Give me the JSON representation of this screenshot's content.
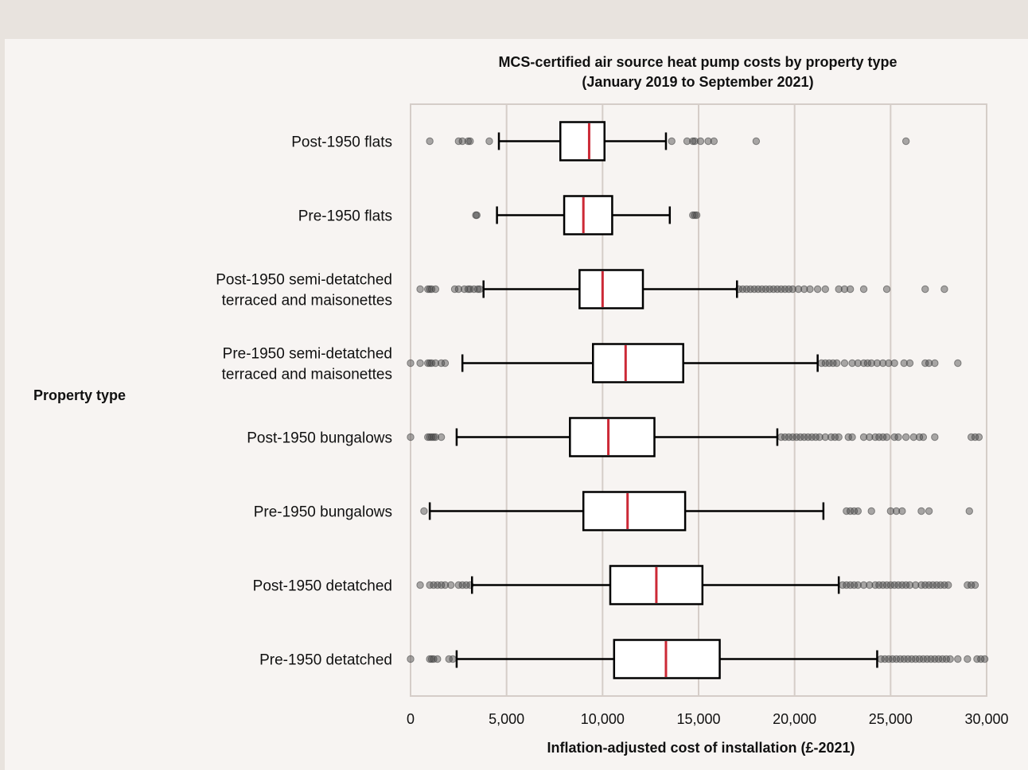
{
  "chart_data": {
    "type": "boxplot",
    "orientation": "horizontal",
    "title_line1": "MCS-certified air source heat pump costs by property type",
    "title_line2": "(January 2019 to September 2021)",
    "xlabel": "Inflation-adjusted cost of installation (£-2021)",
    "ylabel": "Property type",
    "xlim": [
      0,
      30000
    ],
    "xticks": [
      0,
      5000,
      10000,
      15000,
      20000,
      25000,
      30000
    ],
    "xtick_labels": [
      "0",
      "5,000",
      "10,000",
      "15,000",
      "20,000",
      "25,000",
      "30,000"
    ],
    "grid": "vertical",
    "colors": {
      "median": "#cc2936",
      "box": "#000000",
      "grid": "#d5cdc8",
      "outlier": "#444444"
    },
    "categories": [
      {
        "label_lines": [
          "Post-1950 flats"
        ],
        "whisker_low": 4600,
        "q1": 7800,
        "median": 9300,
        "q3": 10100,
        "whisker_high": 13300,
        "outliers": [
          1000,
          2500,
          2700,
          3000,
          3100,
          4100,
          13600,
          14400,
          14700,
          14800,
          15100,
          15500,
          15800,
          18000,
          25800
        ]
      },
      {
        "label_lines": [
          "Pre-1950 flats"
        ],
        "whisker_low": 4500,
        "q1": 8000,
        "median": 9000,
        "q3": 10500,
        "whisker_high": 13500,
        "outliers": [
          3400,
          3450,
          14700,
          14800,
          14900
        ]
      },
      {
        "label_lines": [
          "Post-1950 semi-detatched",
          "terraced and maisonettes"
        ],
        "whisker_low": 3800,
        "q1": 8800,
        "median": 10000,
        "q3": 12100,
        "whisker_high": 17000,
        "outliers": [
          500,
          900,
          1000,
          1100,
          1300,
          2300,
          2500,
          2800,
          3000,
          3100,
          3300,
          3500,
          3600,
          17100,
          17300,
          17500,
          17700,
          17900,
          18100,
          18300,
          18500,
          18700,
          18900,
          19100,
          19300,
          19500,
          19700,
          19900,
          20200,
          20500,
          20800,
          21200,
          21600,
          22300,
          22600,
          22900,
          23600,
          24800,
          26800,
          27800
        ]
      },
      {
        "label_lines": [
          "Pre-1950 semi-detatched",
          "terraced and maisonettes"
        ],
        "whisker_low": 2700,
        "q1": 9500,
        "median": 11200,
        "q3": 14200,
        "whisker_high": 21200,
        "outliers": [
          0,
          500,
          900,
          1000,
          1100,
          1300,
          1600,
          1800,
          21400,
          21600,
          21800,
          22000,
          22200,
          22600,
          23000,
          23300,
          23600,
          23800,
          24000,
          24300,
          24600,
          24900,
          25200,
          25700,
          26000,
          26800,
          27000,
          27300,
          28500
        ]
      },
      {
        "label_lines": [
          "Post-1950 bungalows"
        ],
        "whisker_low": 2400,
        "q1": 8300,
        "median": 10300,
        "q3": 12700,
        "whisker_high": 19100,
        "outliers": [
          0,
          900,
          1000,
          1100,
          1200,
          1300,
          1600,
          19300,
          19500,
          19700,
          19900,
          20100,
          20300,
          20500,
          20700,
          20900,
          21100,
          21300,
          21600,
          21900,
          22100,
          22300,
          22800,
          23000,
          23600,
          23900,
          24200,
          24400,
          24600,
          24800,
          25200,
          25400,
          25800,
          26200,
          26500,
          26700,
          27300,
          29200,
          29400,
          29600
        ]
      },
      {
        "label_lines": [
          "Pre-1950 bungalows"
        ],
        "whisker_low": 1000,
        "q1": 9000,
        "median": 11300,
        "q3": 14300,
        "whisker_high": 21500,
        "outliers": [
          700,
          22700,
          22900,
          23100,
          23300,
          24000,
          25000,
          25300,
          25600,
          26600,
          27000,
          29100
        ]
      },
      {
        "label_lines": [
          "Post-1950 detatched"
        ],
        "whisker_low": 3200,
        "q1": 10400,
        "median": 12800,
        "q3": 15200,
        "whisker_high": 22300,
        "outliers": [
          500,
          1000,
          1200,
          1400,
          1600,
          1800,
          2100,
          2500,
          2700,
          2900,
          3100,
          22500,
          22700,
          22900,
          23100,
          23300,
          23600,
          23900,
          24200,
          24400,
          24600,
          24800,
          25000,
          25200,
          25400,
          25600,
          25800,
          26000,
          26300,
          26600,
          26800,
          27000,
          27200,
          27400,
          27600,
          27800,
          28000,
          29000,
          29200,
          29400
        ]
      },
      {
        "label_lines": [
          "Pre-1950 detatched"
        ],
        "whisker_low": 2400,
        "q1": 10600,
        "median": 13300,
        "q3": 16100,
        "whisker_high": 24300,
        "outliers": [
          0,
          1000,
          1100,
          1200,
          1400,
          2000,
          2200,
          24500,
          24700,
          24900,
          25100,
          25300,
          25500,
          25700,
          25900,
          26100,
          26300,
          26500,
          26700,
          26900,
          27100,
          27300,
          27500,
          27700,
          27900,
          28100,
          28500,
          29000,
          29500,
          29700,
          29900
        ]
      }
    ]
  }
}
